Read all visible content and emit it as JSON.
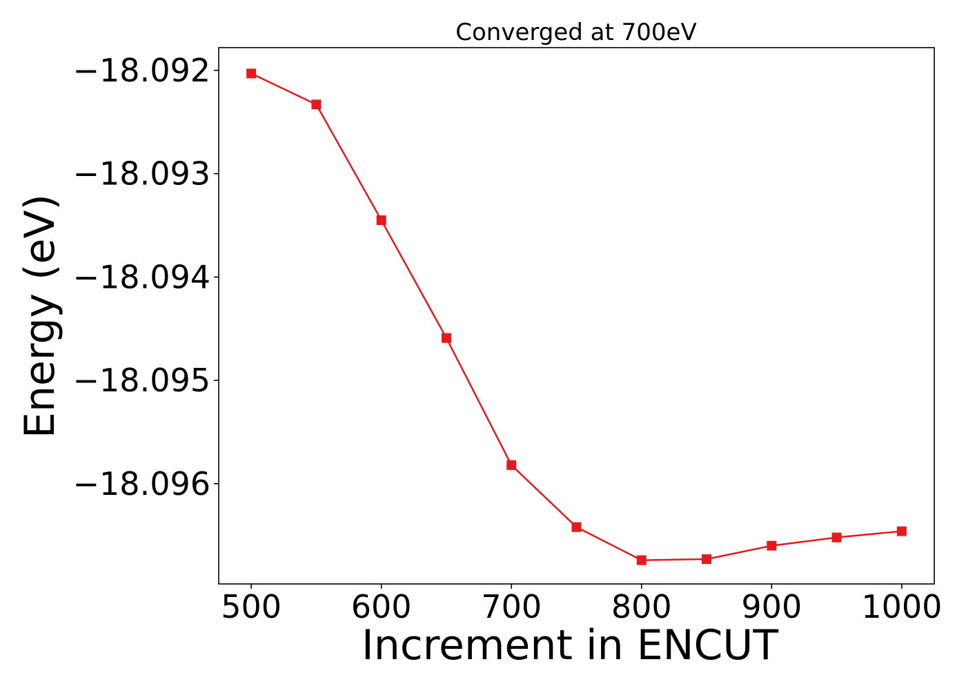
{
  "chart_data": {
    "type": "line",
    "title": "Converged at 700eV",
    "xlabel": "Increment in ENCUT",
    "ylabel": "Energy (eV)",
    "x": [
      500,
      550,
      600,
      650,
      700,
      750,
      800,
      850,
      900,
      950,
      1000
    ],
    "series": [
      {
        "name": "",
        "values": [
          -18.09203,
          -18.09233,
          -18.09345,
          -18.09459,
          -18.09582,
          -18.09642,
          -18.09674,
          -18.09673,
          -18.0966,
          -18.09652,
          -18.09646
        ],
        "color": "#e41a1c",
        "marker": "square"
      }
    ],
    "xlim": [
      475,
      1025
    ],
    "ylim": [
      -18.09697,
      -18.09178
    ],
    "xticks": [
      500,
      600,
      700,
      800,
      900,
      1000
    ],
    "xtick_labels": [
      "500",
      "600",
      "700",
      "800",
      "900",
      "1000"
    ],
    "yticks": [
      -18.092,
      -18.093,
      -18.094,
      -18.095,
      -18.096
    ],
    "ytick_labels": [
      "−18.092",
      "−18.093",
      "−18.094",
      "−18.095",
      "−18.096"
    ],
    "grid": false,
    "legend": "none"
  }
}
